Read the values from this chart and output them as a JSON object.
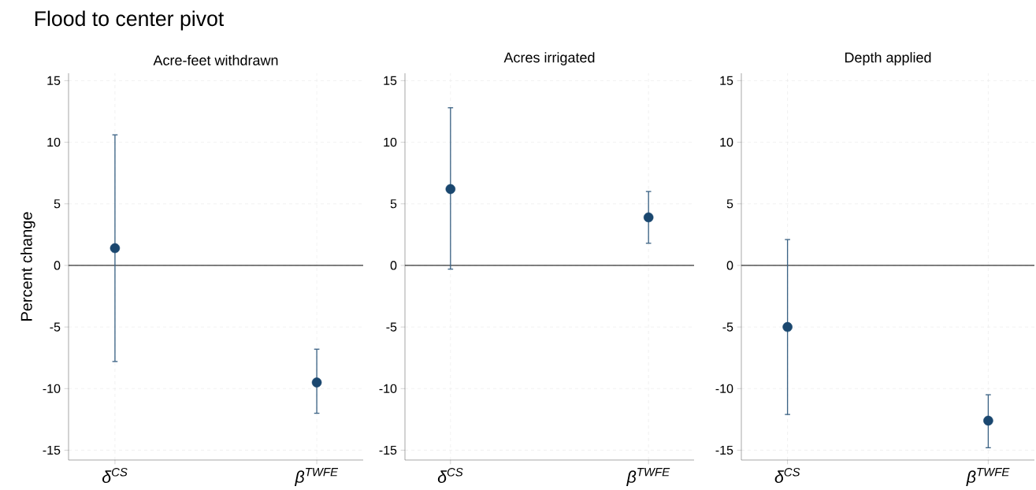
{
  "chart_data": [
    {
      "type": "scatter",
      "title": "Acre-feet withdrawn",
      "ylabel": "Percent change",
      "annotations": [
        "Flood to center pivot"
      ],
      "categories": [
        "δ$^{CS}$",
        "β$^{TWFE}$"
      ],
      "values": [
        1.4,
        -9.5
      ],
      "errors": [
        [
          -7.8,
          10.6
        ],
        [
          -12.0,
          -6.8
        ]
      ],
      "color": "#1a476f",
      "marker": "circle",
      "grid": true,
      "ylim": [
        -15.8,
        15.6
      ],
      "yticks": [
        -15,
        -10,
        -5,
        0,
        5,
        10,
        15
      ],
      "ref_lines": [
        {
          "axis": "y",
          "value": 0,
          "color": "#333333"
        }
      ]
    },
    {
      "type": "scatter",
      "title": "Acres irrigated",
      "categories": [
        "δ$^{CS}$",
        "β$^{TWFE}$"
      ],
      "values": [
        6.2,
        3.9
      ],
      "errors": [
        [
          -0.3,
          12.8
        ],
        [
          1.8,
          6.0
        ]
      ],
      "color": "#1a476f",
      "marker": "circle",
      "grid": true,
      "ylim": [
        -15.8,
        15.6
      ],
      "yticks": [
        -15,
        -10,
        -5,
        0,
        5,
        10,
        15
      ],
      "ref_lines": [
        {
          "axis": "y",
          "value": 0,
          "color": "#333333"
        }
      ]
    },
    {
      "type": "scatter",
      "title": "Depth applied",
      "categories": [
        "δ$^{CS}$",
        "β$^{TWFE}$"
      ],
      "values": [
        -5.0,
        -12.6
      ],
      "errors": [
        [
          -12.1,
          2.1
        ],
        [
          -14.8,
          -10.5
        ]
      ],
      "color": "#1a476f",
      "marker": "circle",
      "grid": true,
      "ylim": [
        -15.8,
        15.6
      ],
      "yticks": [
        -15,
        -10,
        -5,
        0,
        5,
        10,
        15
      ],
      "ref_lines": [
        {
          "axis": "y",
          "value": 0,
          "color": "#333333"
        }
      ]
    }
  ]
}
